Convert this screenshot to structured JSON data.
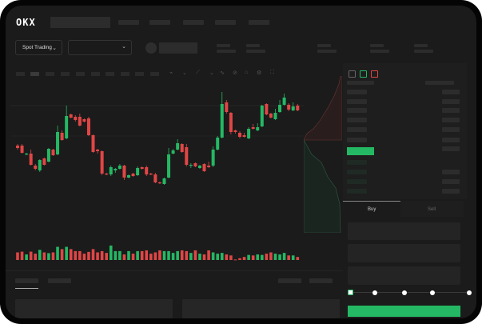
{
  "header": {
    "logo": "OKX"
  },
  "market_bar": {
    "trading_mode": "Spot Trading"
  },
  "order_panel": {
    "tabs": [
      "Buy",
      "Sell"
    ],
    "active_tab": "Buy",
    "slider_percent": 0
  },
  "colors": {
    "up": "#25b864",
    "down": "#e04646",
    "background": "#1b1b1b",
    "accent": "#25b864"
  },
  "icons": [
    "chevron-down-icon",
    "order-book-both-icon",
    "order-book-bids-icon",
    "order-book-asks-icon",
    "draw-line-icon",
    "ruler-icon",
    "camera-icon",
    "settings-icon",
    "fullscreen-icon"
  ],
  "chart_data": {
    "type": "candlestick",
    "ylim": [
      0,
      160
    ],
    "candles": [
      [
        68,
        70,
        63,
        65
      ],
      [
        68,
        70,
        58,
        59
      ],
      [
        57,
        59,
        56,
        58
      ],
      [
        58,
        63,
        43,
        44
      ],
      [
        43,
        45,
        37,
        39
      ],
      [
        37,
        51,
        35,
        50
      ],
      [
        52,
        53,
        43,
        44
      ],
      [
        48,
        65,
        47,
        64
      ],
      [
        63,
        64,
        55,
        56
      ],
      [
        57,
        93,
        56,
        85
      ],
      [
        84,
        87,
        74,
        75
      ],
      [
        77,
        118,
        76,
        105
      ],
      [
        107,
        108,
        102,
        103
      ],
      [
        104,
        106,
        98,
        100
      ],
      [
        104,
        108,
        92,
        93
      ],
      [
        101,
        102,
        97,
        98
      ],
      [
        102,
        104,
        80,
        81
      ],
      [
        81,
        82,
        59,
        60
      ],
      [
        63,
        64,
        58,
        61
      ],
      [
        61,
        62,
        31,
        33
      ],
      [
        33,
        34,
        31,
        32
      ],
      [
        32,
        43,
        30,
        41
      ],
      [
        37,
        40,
        34,
        39
      ],
      [
        39,
        45,
        38,
        43
      ],
      [
        43,
        44,
        25,
        28
      ],
      [
        28,
        32,
        27,
        31
      ],
      [
        33,
        34,
        29,
        30
      ],
      [
        31,
        42,
        30,
        40
      ],
      [
        41,
        42,
        38,
        39
      ],
      [
        41,
        43,
        30,
        32
      ],
      [
        33,
        34,
        31,
        32
      ],
      [
        32,
        34,
        21,
        22
      ],
      [
        22,
        23,
        20,
        21
      ],
      [
        20,
        28,
        19,
        27
      ],
      [
        28,
        65,
        27,
        57
      ],
      [
        58,
        64,
        57,
        62
      ],
      [
        63,
        76,
        62,
        71
      ],
      [
        70,
        71,
        59,
        60
      ],
      [
        66,
        70,
        42,
        44
      ],
      [
        43,
        46,
        40,
        44
      ],
      [
        46,
        47,
        41,
        42
      ],
      [
        40,
        44,
        39,
        43
      ],
      [
        45,
        46,
        35,
        36
      ],
      [
        43,
        48,
        40,
        41
      ],
      [
        43,
        67,
        41,
        63
      ],
      [
        63,
        80,
        62,
        78
      ],
      [
        78,
        135,
        77,
        120
      ],
      [
        122,
        125,
        108,
        110
      ],
      [
        109,
        110,
        82,
        85
      ],
      [
        87,
        88,
        83,
        85
      ],
      [
        84,
        86,
        77,
        79
      ],
      [
        81,
        84,
        78,
        79
      ],
      [
        77,
        91,
        76,
        89
      ],
      [
        91,
        95,
        88,
        89
      ],
      [
        87,
        96,
        86,
        91
      ],
      [
        92,
        119,
        91,
        118
      ],
      [
        120,
        121,
        106,
        107
      ],
      [
        108,
        109,
        102,
        103
      ],
      [
        101,
        114,
        100,
        109
      ],
      [
        110,
        125,
        109,
        119
      ],
      [
        119,
        133,
        118,
        128
      ],
      [
        119,
        121,
        111,
        113
      ],
      [
        112,
        122,
        111,
        117
      ],
      [
        118,
        120,
        111,
        112
      ]
    ],
    "volume": [
      30,
      33,
      22,
      33,
      25,
      40,
      30,
      27,
      30,
      52,
      43,
      52,
      43,
      35,
      35,
      25,
      32,
      43,
      30,
      35,
      28,
      57,
      35,
      35,
      22,
      35,
      25,
      35,
      35,
      38,
      25,
      30,
      38,
      35,
      35,
      28,
      35,
      38,
      35,
      28,
      38,
      25,
      22,
      38,
      30,
      25,
      28,
      22,
      18,
      2,
      7,
      12,
      20,
      18,
      22,
      20,
      25,
      30,
      25,
      22,
      28,
      18,
      18,
      12
    ],
    "volume_max": 60
  }
}
